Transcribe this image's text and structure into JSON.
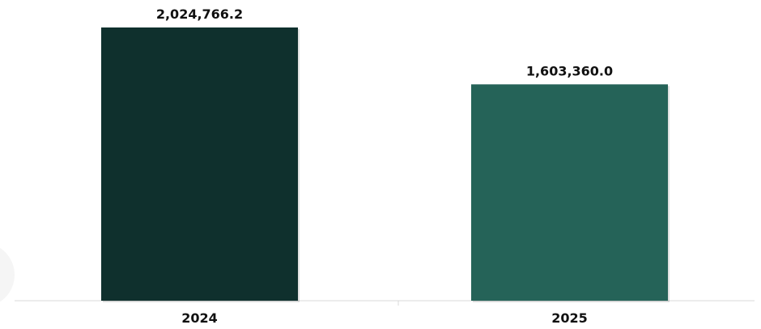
{
  "chart_data": {
    "type": "bar",
    "categories": [
      "2024",
      "2025"
    ],
    "values": [
      2024766.2,
      1603360.0
    ],
    "value_labels": [
      "2,024,766.2",
      "1,603,360.0"
    ],
    "title": "",
    "xlabel": "",
    "ylabel": "",
    "ylim": [
      0,
      2024766.2
    ],
    "grid": false,
    "bar_colors": [
      "#0f302d",
      "#256358"
    ]
  }
}
